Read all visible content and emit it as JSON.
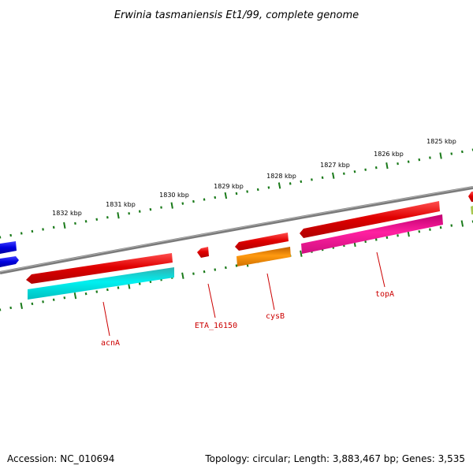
{
  "title": "Erwinia tasmaniensis Et1/99, complete genome",
  "footer": {
    "accession": "Accession: NC_010694",
    "summary": "Topology: circular; Length: 3,883,467 bp; Genes: 3,535"
  },
  "colors": {
    "backbone": "#808080",
    "tick": "#1a7a1a",
    "label": "#cc0000",
    "gene_red": "#e00000",
    "gene_cyan": "#00e0e0",
    "gene_orange": "#f08800",
    "gene_magenta": "#e0108a",
    "gene_blue": "#0000dd",
    "gene_olive": "#a0c040"
  },
  "ticks": [
    {
      "label": "1825 kbp"
    },
    {
      "label": "1826 kbp"
    },
    {
      "label": "1827 kbp"
    },
    {
      "label": "1828 kbp"
    },
    {
      "label": "1829 kbp"
    },
    {
      "label": "1830 kbp"
    },
    {
      "label": "1831 kbp"
    },
    {
      "label": "1832 kbp"
    }
  ],
  "genes": [
    {
      "name": "acnA"
    },
    {
      "name": "ETA_16150"
    },
    {
      "name": "cysB"
    },
    {
      "name": "topA"
    }
  ]
}
